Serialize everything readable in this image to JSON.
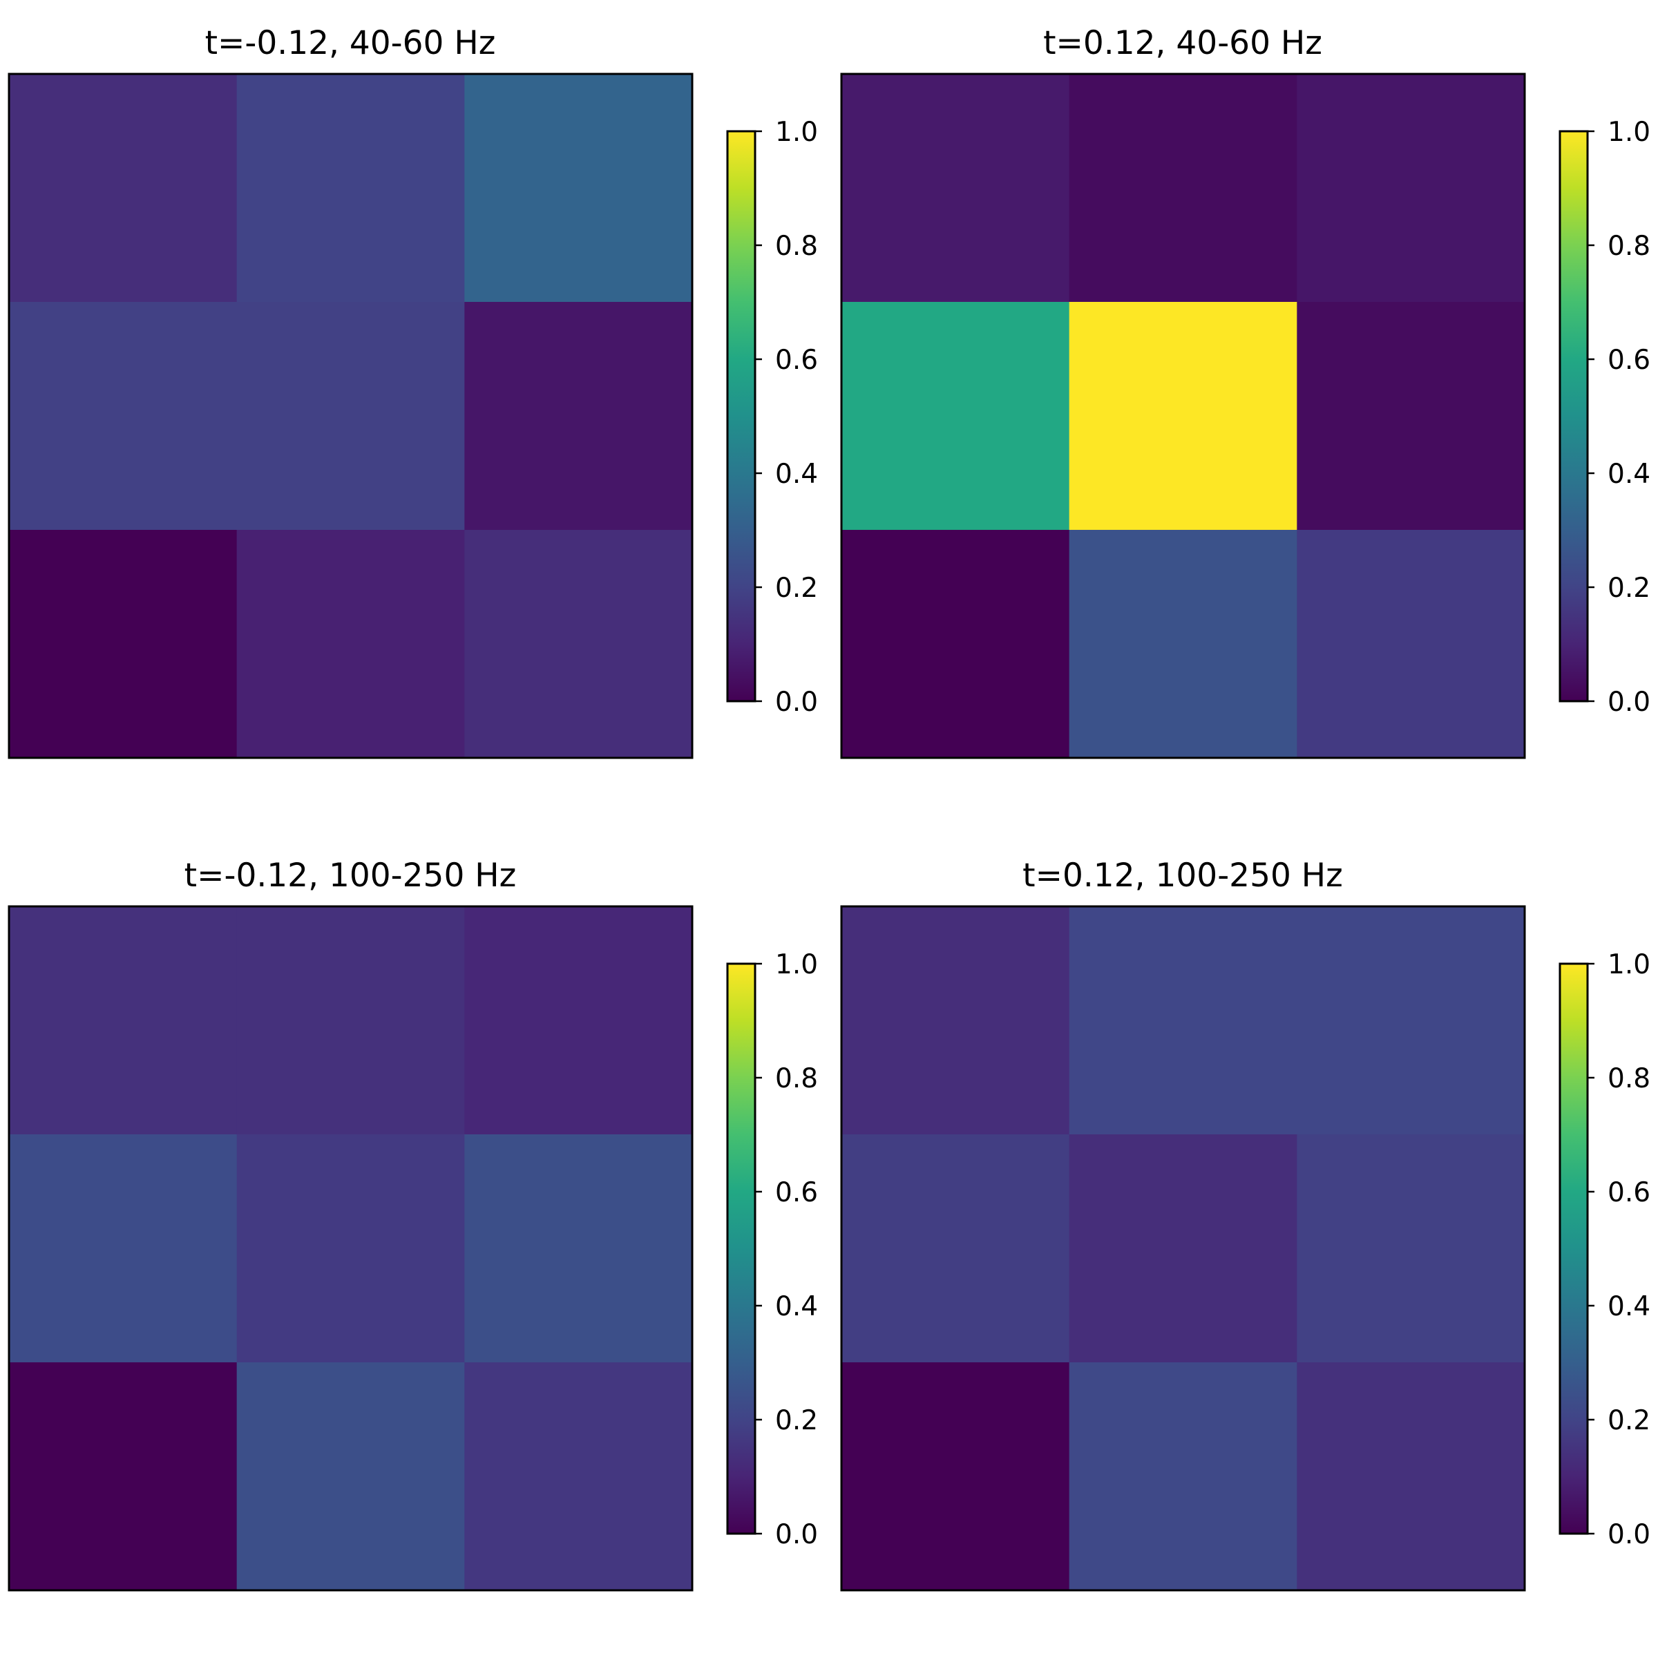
{
  "chart_data": [
    {
      "type": "heatmap",
      "title": "t=-0.12, 40-60 Hz",
      "rows": 3,
      "cols": 3,
      "values": [
        [
          0.13,
          0.2,
          0.32
        ],
        [
          0.19,
          0.19,
          0.06
        ],
        [
          0.0,
          0.09,
          0.13
        ]
      ],
      "colorbar": {
        "colormap": "viridis",
        "range": [
          0,
          1
        ],
        "ticks": [
          "0.0",
          "0.2",
          "0.4",
          "0.6",
          "0.8",
          "1.0"
        ]
      },
      "axes_ticks": false
    },
    {
      "type": "heatmap",
      "title": "t=0.12, 40-60 Hz",
      "rows": 3,
      "cols": 3,
      "values": [
        [
          0.07,
          0.03,
          0.06
        ],
        [
          0.6,
          1.0,
          0.03
        ],
        [
          0.0,
          0.25,
          0.17
        ]
      ],
      "colorbar": {
        "colormap": "viridis",
        "range": [
          0,
          1
        ],
        "ticks": [
          "0.0",
          "0.2",
          "0.4",
          "0.6",
          "0.8",
          "1.0"
        ]
      },
      "axes_ticks": false
    },
    {
      "type": "heatmap",
      "title": "t=-0.12, 100-250 Hz",
      "rows": 3,
      "cols": 3,
      "values": [
        [
          0.14,
          0.14,
          0.11
        ],
        [
          0.23,
          0.17,
          0.24
        ],
        [
          0.0,
          0.24,
          0.16
        ]
      ],
      "colorbar": {
        "colormap": "viridis",
        "range": [
          0,
          1
        ],
        "ticks": [
          "0.0",
          "0.2",
          "0.4",
          "0.6",
          "0.8",
          "1.0"
        ]
      },
      "axes_ticks": false
    },
    {
      "type": "heatmap",
      "title": "t=0.12, 100-250 Hz",
      "rows": 3,
      "cols": 3,
      "values": [
        [
          0.13,
          0.21,
          0.21
        ],
        [
          0.18,
          0.13,
          0.19
        ],
        [
          0.0,
          0.22,
          0.14
        ]
      ],
      "colorbar": {
        "colormap": "viridis",
        "range": [
          0,
          1
        ],
        "ticks": [
          "0.0",
          "0.2",
          "0.4",
          "0.6",
          "0.8",
          "1.0"
        ]
      },
      "axes_ticks": false
    }
  ]
}
